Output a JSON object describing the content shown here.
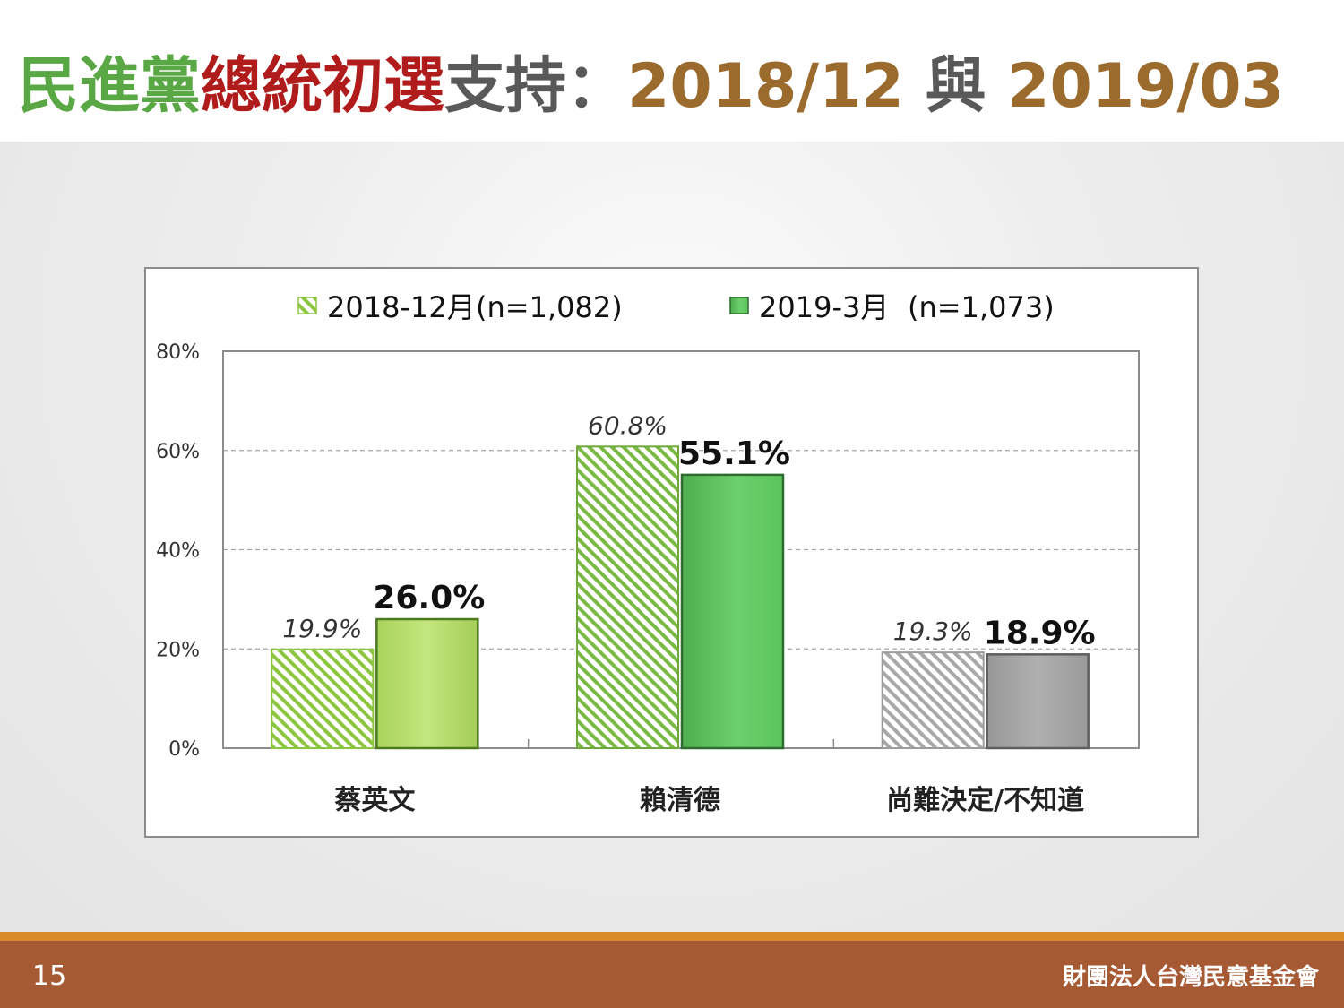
{
  "title": {
    "segments": [
      {
        "text": "民進黨",
        "color": "#5aa845"
      },
      {
        "text": "總統初選",
        "color": "#b01c1c"
      },
      {
        "text": "支持：",
        "color": "#595959"
      },
      {
        "text": "2018/12",
        "color": "#9a6b2c"
      },
      {
        "text": " 與 ",
        "color": "#595959"
      },
      {
        "text": "2019/03",
        "color": "#9a6b2c"
      }
    ]
  },
  "chart_data": {
    "type": "bar",
    "categories": [
      "蔡英文",
      "賴清德",
      "尚難決定/不知道"
    ],
    "series": [
      {
        "name": "2018-12月",
        "legend_note": "(n=1,082)",
        "values": [
          19.9,
          60.8,
          19.3
        ],
        "value_labels": [
          "19.9%",
          "60.8%",
          "19.3%"
        ],
        "style": "hatched"
      },
      {
        "name": "2019-3月",
        "legend_note": "(n=1,073)",
        "values": [
          26.0,
          55.1,
          18.9
        ],
        "value_labels": [
          "26.0%",
          "55.1%",
          "18.9%"
        ],
        "style": "solid"
      }
    ],
    "ylim": [
      0,
      80
    ],
    "yticks": [
      0,
      20,
      40,
      60,
      80
    ],
    "ytick_labels": [
      "0%",
      "20%",
      "40%",
      "60%",
      "80%"
    ],
    "grid": true,
    "legend_position": "top",
    "colors": {
      "series1_hatch": [
        "#8cc63f",
        "#6fa83a",
        "#a8a8a8"
      ],
      "series2_fill": [
        "#b8de6f",
        "#5cbf5c",
        "#a3a3a3"
      ]
    }
  },
  "footer": {
    "page_number": "15",
    "organization": "財團法人台灣民意基金會"
  }
}
